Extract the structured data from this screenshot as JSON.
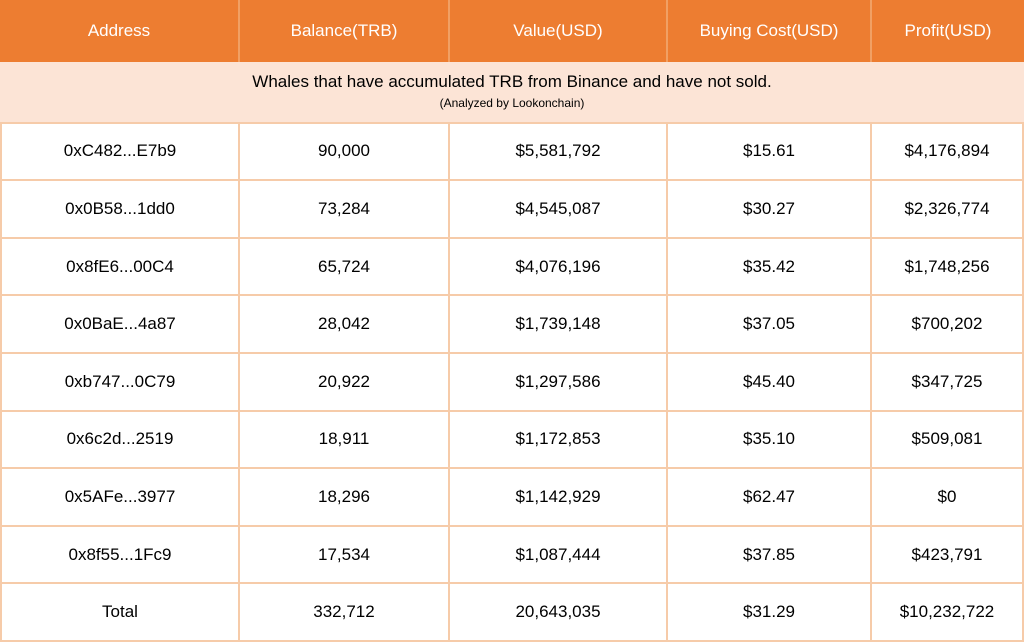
{
  "chart_data": {
    "type": "table",
    "title": "Whales that have accumulated TRB from Binance and have not sold.",
    "subtitle": "(Analyzed by Lookonchain)",
    "columns": [
      "Address",
      "Balance(TRB)",
      "Value(USD)",
      "Buying Cost(USD)",
      "Profit(USD)"
    ],
    "rows": [
      [
        "0xC482...E7b9",
        "90,000",
        "$5,581,792",
        "$15.61",
        "$4,176,894"
      ],
      [
        "0x0B58...1dd0",
        "73,284",
        "$4,545,087",
        "$30.27",
        "$2,326,774"
      ],
      [
        "0x8fE6...00C4",
        "65,724",
        "$4,076,196",
        "$35.42",
        "$1,748,256"
      ],
      [
        "0x0BaE...4a87",
        "28,042",
        "$1,739,148",
        "$37.05",
        "$700,202"
      ],
      [
        "0xb747...0C79",
        "20,922",
        "$1,297,586",
        "$45.40",
        "$347,725"
      ],
      [
        "0x6c2d...2519",
        "18,911",
        "$1,172,853",
        "$35.10",
        "$509,081"
      ],
      [
        "0x5AFe...3977",
        "18,296",
        "$1,142,929",
        "$62.47",
        "$0"
      ],
      [
        "0x8f55...1Fc9",
        "17,534",
        "$1,087,444",
        "$37.85",
        "$423,791"
      ]
    ],
    "total": [
      "Total",
      "332,712",
      "20,643,035",
      "$31.29",
      "$10,232,722"
    ],
    "layout": {
      "grid": true,
      "header_position": "top"
    }
  },
  "colors": {
    "header_bg": "#ED7D31",
    "header_text": "#FFFFFF",
    "header_divider": "#F1A064",
    "subtitle_bg": "#FCE4D6",
    "grid_border": "#F6CBA9",
    "body_text": "#000000",
    "body_bg": "#FFFFFF"
  }
}
